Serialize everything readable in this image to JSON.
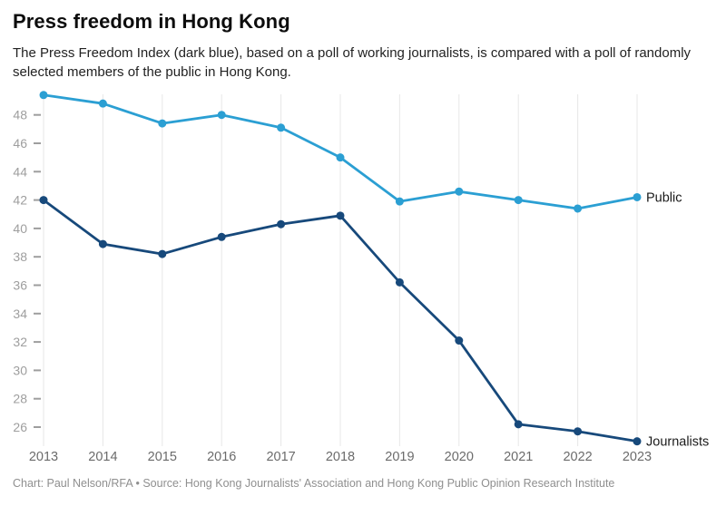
{
  "header": {
    "title": "Press freedom in Hong Kong",
    "subtitle": "The Press Freedom Index (dark blue), based on a poll of working journalists, is compared with a poll of randomly selected members of the public in Hong Kong."
  },
  "chart_data": {
    "type": "line",
    "title": "Press freedom in Hong Kong",
    "x": [
      2013,
      2014,
      2015,
      2016,
      2017,
      2018,
      2019,
      2020,
      2021,
      2022,
      2023
    ],
    "series": [
      {
        "name": "Public",
        "color": "#2B9FD3",
        "values": [
          49.4,
          48.8,
          47.4,
          48.0,
          47.1,
          45.0,
          41.9,
          42.6,
          42.0,
          41.4,
          42.2
        ]
      },
      {
        "name": "Journalists",
        "color": "#17497B",
        "values": [
          42.0,
          38.9,
          38.2,
          39.4,
          40.3,
          40.9,
          36.2,
          32.1,
          26.2,
          25.7,
          25.0
        ]
      }
    ],
    "yticks": [
      26,
      28,
      30,
      32,
      34,
      36,
      38,
      40,
      42,
      44,
      46,
      48
    ],
    "ylim": [
      24.6,
      50.1
    ],
    "xlim": [
      2013,
      2023
    ],
    "xlabel": "",
    "ylabel": "",
    "grid": "vertical-only",
    "legend_position": "end-of-line-labels"
  },
  "footer": {
    "credit": "Chart: Paul Nelson/RFA • Source: Hong Kong Journalists' Association and Hong Kong Public Opinion Research Institute"
  }
}
